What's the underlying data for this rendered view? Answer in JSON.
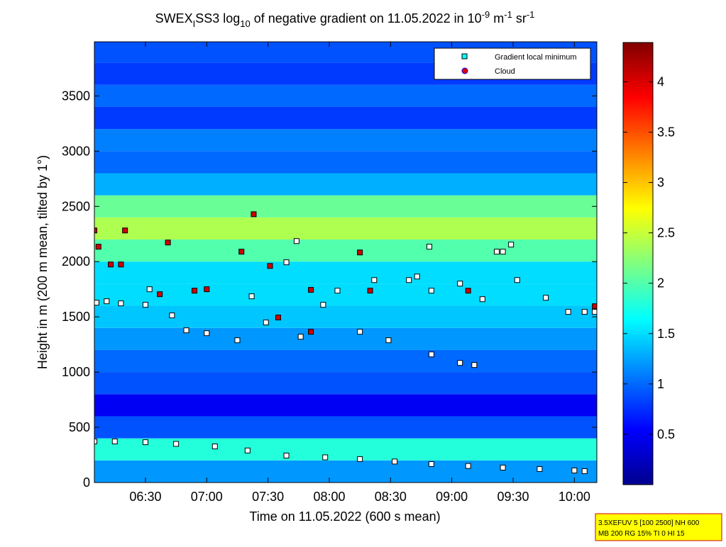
{
  "chart_data": {
    "type": "scatter",
    "title_parts": [
      "SWEX",
      "I",
      "SS3 log",
      "10",
      " of negative gradient on 11.05.2022 in 10",
      "-9",
      " m",
      "-1",
      " sr",
      "-1"
    ],
    "x_label": "Time on 11.05.2022 (600 s mean)",
    "y_label": "Height in m (200 m mean, tilted by 1°)",
    "xlim": [
      365,
      611
    ],
    "ylim": [
      0,
      3990
    ],
    "xticks": [
      {
        "value": 390,
        "label": "06:30"
      },
      {
        "value": 420,
        "label": "07:00"
      },
      {
        "value": 450,
        "label": "07:30"
      },
      {
        "value": 480,
        "label": "08:00"
      },
      {
        "value": 510,
        "label": "08:30"
      },
      {
        "value": 540,
        "label": "09:00"
      },
      {
        "value": 570,
        "label": "09:30"
      },
      {
        "value": 600,
        "label": "10:00"
      }
    ],
    "yticks": [
      0,
      500,
      1000,
      1500,
      2000,
      2500,
      3000,
      3500
    ],
    "background_profile": {
      "height_edges": [
        0,
        200,
        400,
        600,
        800,
        1000,
        1200,
        1400,
        1600,
        1800,
        2000,
        2200,
        2400,
        2600,
        2800,
        3000,
        3200,
        3400,
        3600,
        3800,
        3990
      ],
      "values": [
        1.2,
        1.8,
        0.9,
        0.5,
        0.9,
        1.0,
        1.2,
        1.4,
        1.5,
        1.5,
        2.0,
        2.4,
        2.1,
        1.3,
        1.0,
        1.1,
        0.8,
        1.0,
        0.8,
        0.9
      ]
    },
    "clim": [
      0,
      4.39
    ],
    "cticks": [
      0.5,
      1,
      1.5,
      2,
      2.5,
      3,
      3.5,
      4
    ],
    "legend": "upper right",
    "series": [
      {
        "name": "Gradient local minimum",
        "color": "#ffffff",
        "x": [
          365,
          375,
          390,
          405,
          424,
          440,
          459,
          478,
          495,
          512,
          530,
          548,
          565,
          583,
          600,
          605,
          390,
          410,
          420,
          435,
          449,
          466,
          477,
          495,
          509,
          519,
          530,
          544,
          555,
          565,
          572,
          586,
          597,
          544,
          551,
          392,
          403,
          442,
          459,
          464,
          484,
          502,
          523,
          529,
          562,
          569,
          530,
          371,
          378,
          366,
          605,
          610
        ],
        "y": [
          372,
          372,
          365,
          350,
          327,
          290,
          244,
          228,
          212,
          190,
          167,
          150,
          135,
          122,
          109,
          103,
          1609,
          1378,
          1352,
          1288,
          1449,
          1320,
          1609,
          1365,
          1288,
          1833,
          1737,
          1801,
          1660,
          2090,
          1833,
          1673,
          1545,
          1083,
          1064,
          1750,
          1513,
          1686,
          1994,
          2186,
          1737,
          1833,
          1865,
          2135,
          2090,
          2154,
          1160,
          1641,
          1622,
          1628,
          1545,
          1545
        ]
      },
      {
        "name": "Cloud",
        "color": "#d00000",
        "x": [
          365,
          380,
          367,
          373,
          378,
          401,
          414,
          420,
          437,
          443,
          451,
          455,
          471,
          471,
          495,
          500,
          548,
          610,
          397
        ],
        "y": [
          2282,
          2282,
          2135,
          1974,
          1974,
          2173,
          1737,
          1750,
          2090,
          2429,
          1961,
          1494,
          1744,
          1365,
          2083,
          1737,
          1737,
          1596,
          1705
        ]
      }
    ],
    "info_box": [
      "3.5XEFUV 5 [100 2500] NH 600",
      "MB 200 RG 15% TI 0 HI 15"
    ]
  }
}
